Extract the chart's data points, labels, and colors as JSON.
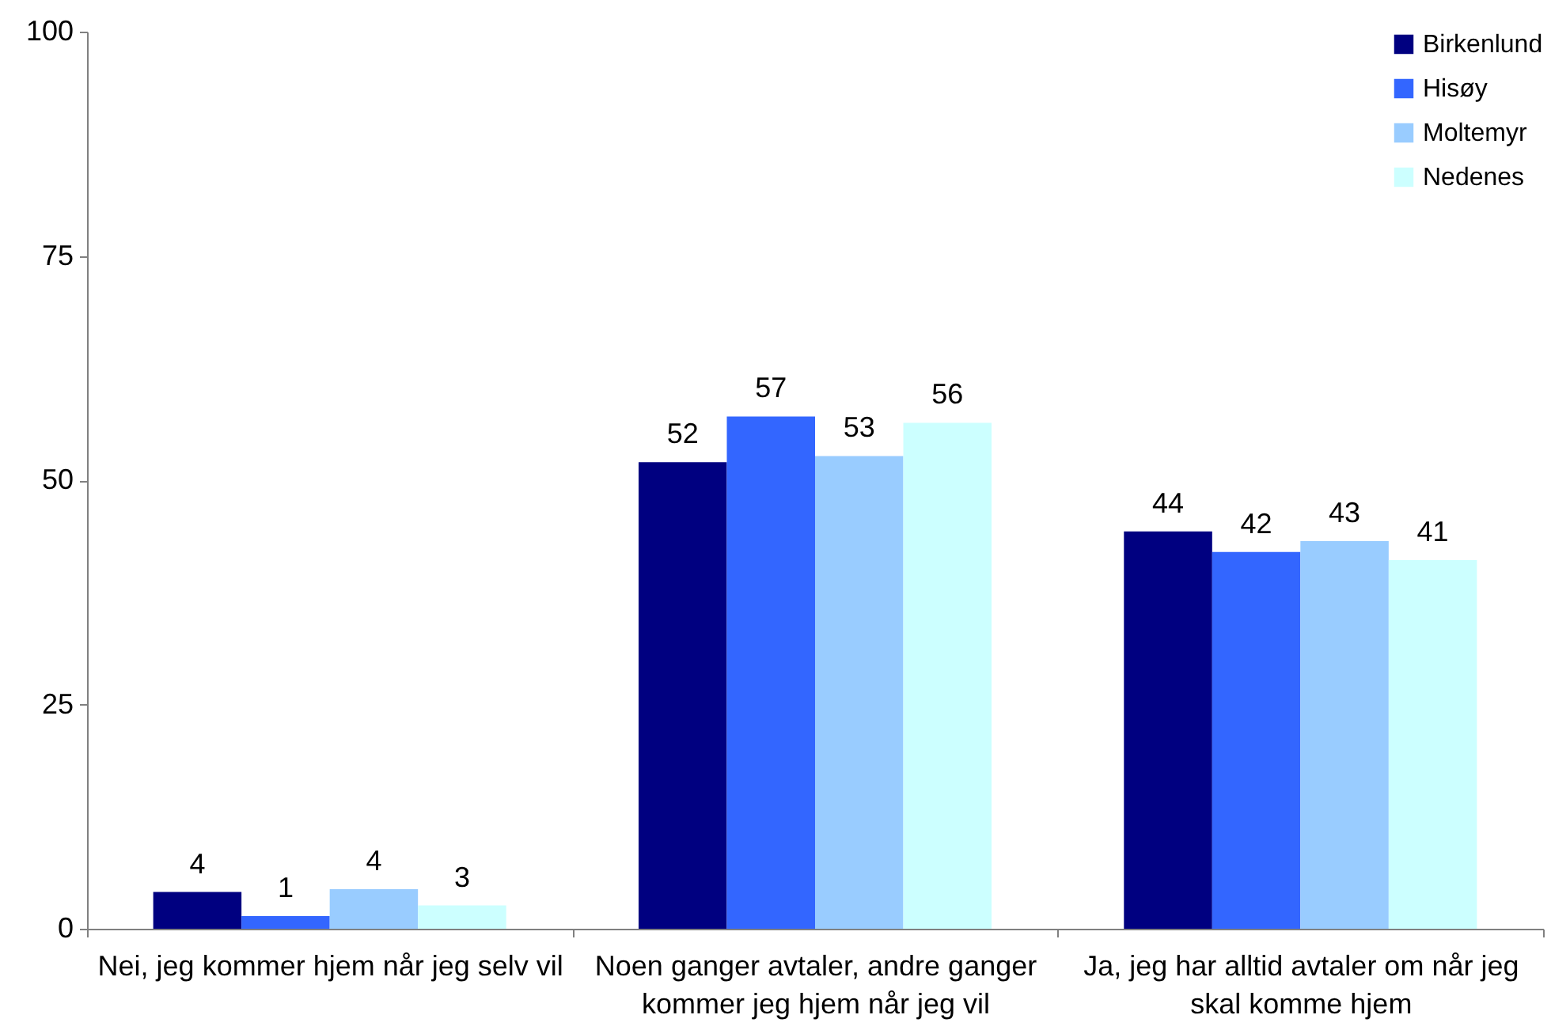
{
  "chart_data": {
    "type": "bar",
    "categories": [
      "Nei, jeg kommer hjem når jeg selv vil",
      "Noen ganger avtaler, andre ganger kommer jeg hjem når jeg vil",
      "Ja, jeg har alltid avtaler om når jeg skal komme hjem"
    ],
    "series": [
      {
        "name": "Birkenlund",
        "color": "#000080",
        "values": [
          4.1,
          52.0,
          44.3
        ],
        "value_labels": [
          "4",
          "52",
          "44"
        ]
      },
      {
        "name": "Hisøy",
        "color": "#3366ff",
        "values": [
          1.4,
          57.1,
          42.0
        ],
        "value_labels": [
          "1",
          "57",
          "42"
        ]
      },
      {
        "name": "Moltemyr",
        "color": "#99ccff",
        "values": [
          4.4,
          52.7,
          43.2
        ],
        "value_labels": [
          "4",
          "53",
          "43"
        ]
      },
      {
        "name": "Nedenes",
        "color": "#ccffff",
        "values": [
          2.6,
          56.4,
          41.1
        ],
        "value_labels": [
          "3",
          "56",
          "41"
        ]
      }
    ],
    "ylim": [
      0,
      100
    ],
    "yticks": [
      0,
      25,
      50,
      75,
      100
    ],
    "legend": "top right"
  }
}
